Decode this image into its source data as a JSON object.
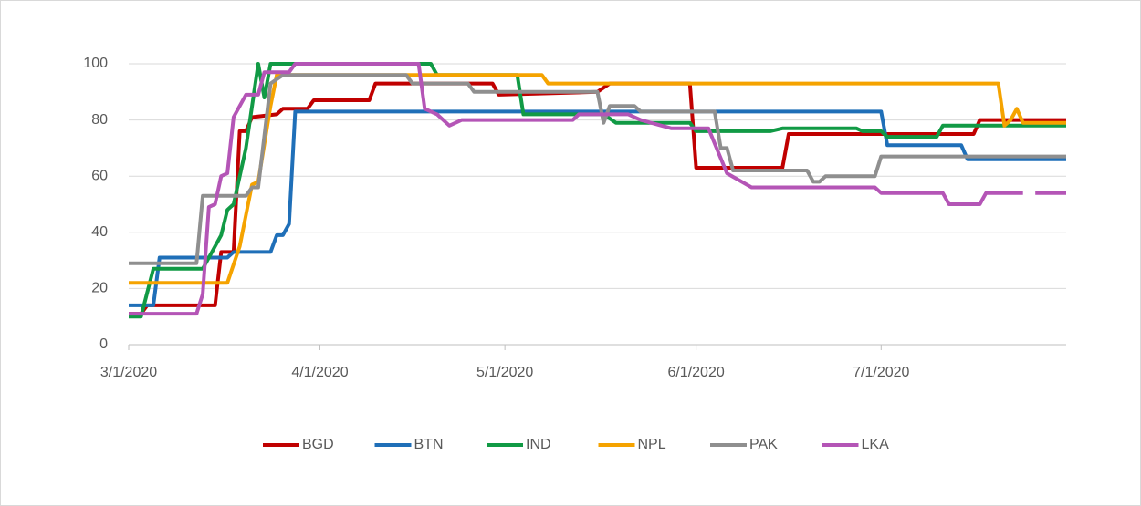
{
  "chart_data": {
    "type": "line",
    "xlim": [
      "3/1/2020",
      "7/31/2020"
    ],
    "xticks": [
      "3/1/2020",
      "4/1/2020",
      "5/1/2020",
      "6/1/2020",
      "7/1/2020"
    ],
    "ylim": [
      0,
      100
    ],
    "yticks": [
      0,
      20,
      40,
      60,
      80,
      100
    ],
    "grid": true,
    "legend": "bottom",
    "series": [
      {
        "name": "BGD",
        "color": "#c00000",
        "x": [
          "3/1/2020",
          "3/3/2020",
          "3/4/2020",
          "3/15/2020",
          "3/16/2020",
          "3/18/2020",
          "3/19/2020",
          "3/20/2020",
          "3/21/2020",
          "3/25/2020",
          "3/26/2020",
          "3/30/2020",
          "3/31/2020",
          "4/9/2020",
          "4/10/2020",
          "4/29/2020",
          "4/30/2020",
          "5/16/2020",
          "5/18/2020",
          "5/31/2020",
          "6/1/2020",
          "6/15/2020",
          "6/16/2020",
          "7/16/2020",
          "7/17/2020",
          "7/31/2020"
        ],
        "values": [
          11,
          11,
          14,
          14,
          33,
          33,
          76,
          76,
          81,
          82,
          84,
          84,
          87,
          87,
          93,
          93,
          89,
          90,
          93,
          93,
          63,
          63,
          75,
          75,
          80,
          80
        ]
      },
      {
        "name": "BTN",
        "color": "#1f6fb8",
        "x": [
          "3/1/2020",
          "3/5/2020",
          "3/6/2020",
          "3/17/2020",
          "3/18/2020",
          "3/24/2020",
          "3/25/2020",
          "3/26/2020",
          "3/27/2020",
          "3/28/2020",
          "7/1/2020",
          "7/2/2020",
          "7/14/2020",
          "7/15/2020",
          "7/31/2020"
        ],
        "values": [
          14,
          14,
          31,
          31,
          33,
          33,
          39,
          39,
          43,
          83,
          83,
          71,
          71,
          66,
          66
        ]
      },
      {
        "name": "IND",
        "color": "#119a45",
        "x": [
          "3/1/2020",
          "3/3/2020",
          "3/5/2020",
          "3/13/2020",
          "3/16/2020",
          "3/17/2020",
          "3/18/2020",
          "3/20/2020",
          "3/22/2020",
          "3/23/2020",
          "3/24/2020",
          "4/19/2020",
          "4/20/2020",
          "5/3/2020",
          "5/4/2020",
          "5/17/2020",
          "5/19/2020",
          "5/31/2020",
          "6/1/2020",
          "6/13/2020",
          "6/15/2020",
          "6/27/2020",
          "6/28/2020",
          "7/1/2020",
          "7/2/2020",
          "7/10/2020",
          "7/11/2020",
          "7/31/2020"
        ],
        "values": [
          10,
          10,
          27,
          27,
          39,
          48,
          50,
          70,
          100,
          88,
          100,
          100,
          96,
          96,
          82,
          82,
          79,
          79,
          76,
          76,
          77,
          77,
          76,
          76,
          74,
          74,
          78,
          78
        ]
      },
      {
        "name": "NPL",
        "color": "#f5a300",
        "x": [
          "3/1/2020",
          "3/17/2020",
          "3/19/2020",
          "3/21/2020",
          "3/22/2020",
          "3/24/2020",
          "3/25/2020",
          "5/7/2020",
          "5/8/2020",
          "7/20/2020",
          "7/21/2020",
          "7/22/2020",
          "7/23/2020",
          "7/24/2020",
          "7/31/2020"
        ],
        "values": [
          22,
          22,
          35,
          57,
          58,
          85,
          96,
          96,
          93,
          93,
          78,
          80,
          84,
          79,
          79
        ]
      },
      {
        "name": "PAK",
        "color": "#8f8f8f",
        "x": [
          "3/1/2020",
          "3/12/2020",
          "3/13/2020",
          "3/20/2020",
          "3/21/2020",
          "3/22/2020",
          "3/24/2020",
          "3/26/2020",
          "4/15/2020",
          "4/16/2020",
          "4/25/2020",
          "4/26/2020",
          "5/16/2020",
          "5/17/2020",
          "5/18/2020",
          "5/22/2020",
          "5/23/2020",
          "6/4/2020",
          "6/5/2020",
          "6/6/2020",
          "6/7/2020",
          "6/19/2020",
          "6/20/2020",
          "6/21/2020",
          "6/22/2020",
          "6/30/2020",
          "7/1/2020",
          "7/31/2020"
        ],
        "values": [
          29,
          29,
          53,
          53,
          56,
          56,
          93,
          96,
          96,
          93,
          93,
          90,
          90,
          79,
          85,
          85,
          83,
          83,
          70,
          70,
          62,
          62,
          58,
          58,
          60,
          60,
          67,
          67
        ]
      },
      {
        "name": "LKA",
        "color": "#b455b6",
        "x": [
          "3/1/2020",
          "3/12/2020",
          "3/13/2020",
          "3/14/2020",
          "3/15/2020",
          "3/16/2020",
          "3/17/2020",
          "3/18/2020",
          "3/20/2020",
          "3/22/2020",
          "3/23/2020",
          "3/27/2020",
          "3/28/2020",
          "4/17/2020",
          "4/18/2020",
          "4/20/2020",
          "4/22/2020",
          "4/24/2020",
          "5/12/2020",
          "5/13/2020",
          "5/21/2020",
          "5/23/2020",
          "5/28/2020",
          "6/3/2020",
          "6/6/2020",
          "6/10/2020",
          "6/30/2020",
          "7/1/2020",
          "7/11/2020",
          "7/12/2020",
          "7/17/2020",
          "7/18/2020",
          "7/24/2020",
          "7/25/2020",
          "7/26/2020",
          "7/31/2020"
        ],
        "values": [
          11,
          11,
          18,
          49,
          50,
          60,
          61,
          81,
          89,
          89,
          97,
          97,
          100,
          100,
          84,
          82,
          78,
          80,
          80,
          82,
          82,
          80,
          77,
          77,
          61,
          56,
          56,
          54,
          54,
          50,
          50,
          54,
          54,
          null,
          54,
          54
        ]
      }
    ]
  }
}
